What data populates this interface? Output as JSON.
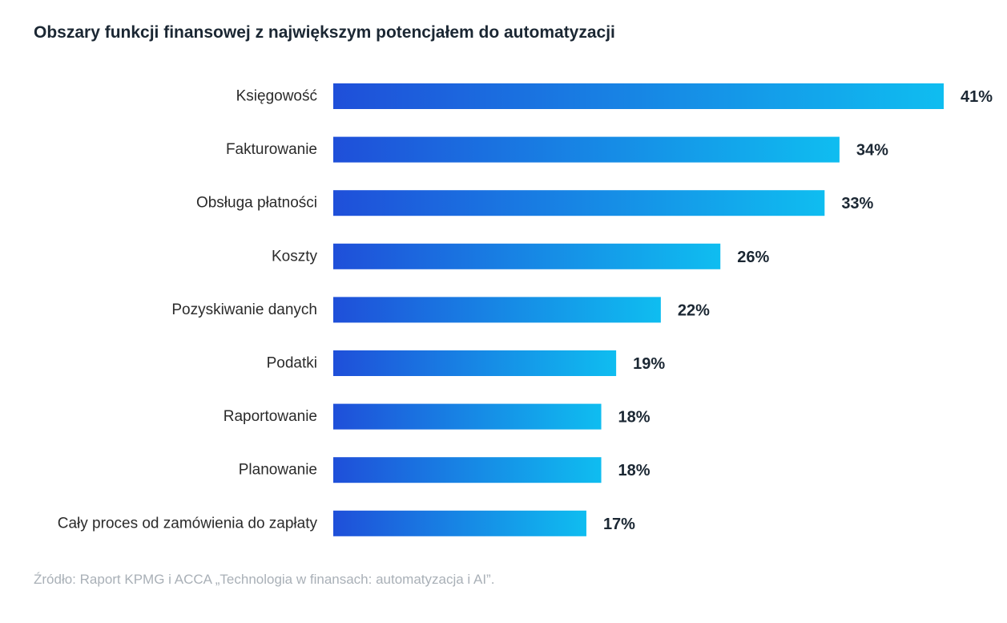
{
  "chart_data": {
    "type": "bar",
    "orientation": "horizontal",
    "title": "Obszary funkcji finansowej z największym potencjałem do automatyzacji",
    "categories": [
      "Księgowość",
      "Fakturowanie",
      "Obsługa płatności",
      "Koszty",
      "Pozyskiwanie danych",
      "Podatki",
      "Raportowanie",
      "Planowanie",
      "Cały proces od zamówienia do zapłaty"
    ],
    "values": [
      41,
      34,
      33,
      26,
      22,
      19,
      18,
      18,
      17
    ],
    "value_labels": [
      "41%",
      "34%",
      "33%",
      "26%",
      "22%",
      "19%",
      "18%",
      "18%",
      "17%"
    ],
    "unit": "%",
    "xlabel": "",
    "ylabel": "",
    "xlim": [
      0,
      41
    ],
    "grid": false,
    "legend": "none",
    "colors": {
      "bar_start": "#1f4fd9",
      "bar_end": "#0fbdf0"
    }
  },
  "source": "Źródło: Raport KPMG i ACCA „Technologia w finansach: automatyzacja i AI”."
}
